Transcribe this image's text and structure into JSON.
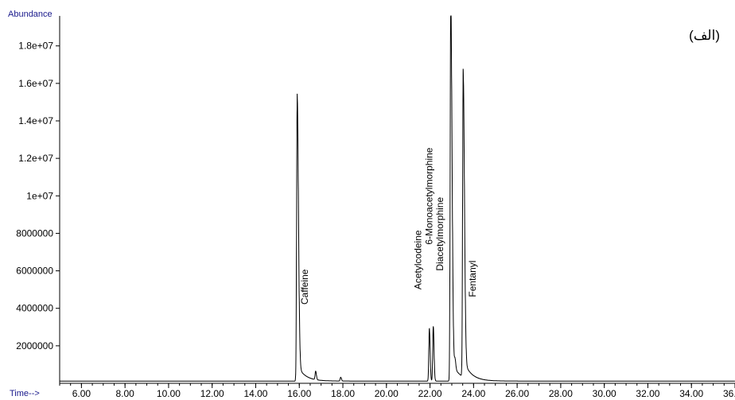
{
  "chart_data": {
    "type": "line",
    "panel_label": "(الف)",
    "ylabel": "Abundance",
    "xlabel": "Time-->",
    "xlim": [
      5.0,
      36.0
    ],
    "ylim": [
      0,
      19600000
    ],
    "grid": false,
    "x_ticks": [
      {
        "value": 6,
        "label": "6.00"
      },
      {
        "value": 8,
        "label": "8.00"
      },
      {
        "value": 10,
        "label": "10.00"
      },
      {
        "value": 12,
        "label": "12.00"
      },
      {
        "value": 14,
        "label": "14.00"
      },
      {
        "value": 16,
        "label": "16.00"
      },
      {
        "value": 18,
        "label": "18.00"
      },
      {
        "value": 20,
        "label": "20.00"
      },
      {
        "value": 22,
        "label": "22.00"
      },
      {
        "value": 24,
        "label": "24.00"
      },
      {
        "value": 26,
        "label": "26.00"
      },
      {
        "value": 28,
        "label": "28.00"
      },
      {
        "value": 30,
        "label": "30.00"
      },
      {
        "value": 32,
        "label": "32.00"
      },
      {
        "value": 34,
        "label": "34.00"
      },
      {
        "value": 36,
        "label": "36.00"
      }
    ],
    "y_ticks": [
      {
        "value": 2000000,
        "label": "2000000"
      },
      {
        "value": 4000000,
        "label": "4000000"
      },
      {
        "value": 6000000,
        "label": "6000000"
      },
      {
        "value": 8000000,
        "label": "8000000"
      },
      {
        "value": 10000000,
        "label": "1e+07"
      },
      {
        "value": 12000000,
        "label": "1.2e+07"
      },
      {
        "value": 14000000,
        "label": "1.4e+07"
      },
      {
        "value": 16000000,
        "label": "1.6e+07"
      },
      {
        "value": 18000000,
        "label": "1.8e+07"
      }
    ],
    "baseline": 120000,
    "peaks": [
      {
        "x": 15.9,
        "y": 14500000
      },
      {
        "x": 16.75,
        "y": 450000
      },
      {
        "x": 17.9,
        "y": 200000
      },
      {
        "x": 21.97,
        "y": 2800000
      },
      {
        "x": 22.15,
        "y": 2900000
      },
      {
        "x": 22.95,
        "y": 19500000
      },
      {
        "x": 23.15,
        "y": 500000
      },
      {
        "x": 23.52,
        "y": 15500000
      }
    ],
    "annotations": [
      {
        "text": "Caffeine",
        "x": 16.4,
        "y": 4200000
      },
      {
        "text": "Acetylcodeine",
        "x": 21.6,
        "y": 5000000
      },
      {
        "text": "6-Monoacetylmorphine",
        "x": 22.1,
        "y": 7400000
      },
      {
        "text": "Diacetylmorphine",
        "x": 22.6,
        "y": 6000000
      },
      {
        "text": "Fentanyl",
        "x": 24.1,
        "y": 4600000
      }
    ],
    "line_color": "#000000",
    "axis_title_color": "#1a1a8c"
  }
}
